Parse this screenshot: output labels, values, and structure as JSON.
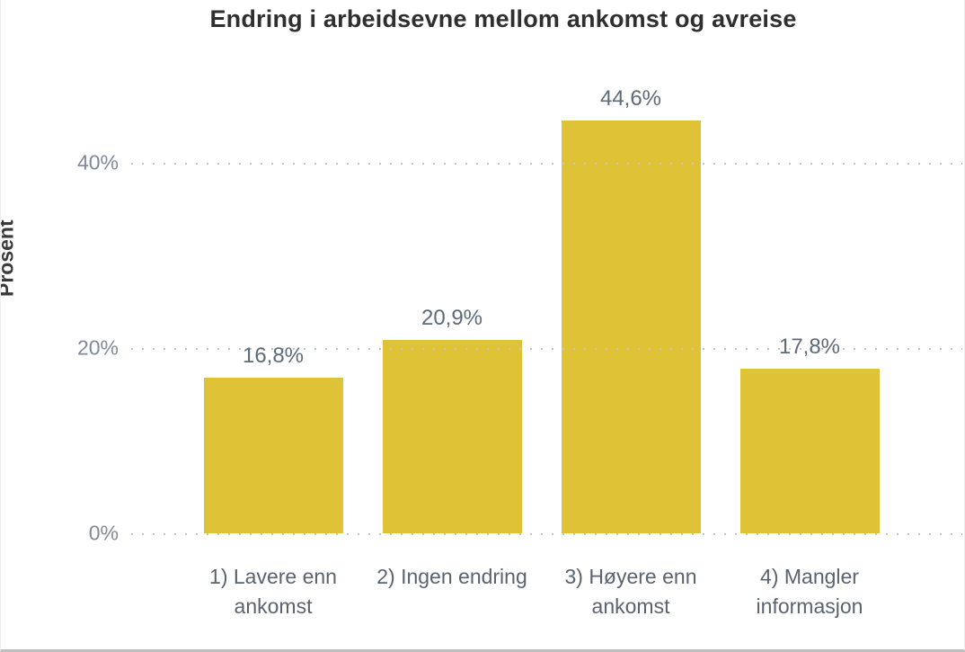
{
  "chart_data": {
    "type": "bar",
    "title": "Endring i arbeidsevne mellom ankomst og avreise",
    "xlabel": "",
    "ylabel": "Prosent",
    "categories": [
      "1) Lavere enn ankomst",
      "2) Ingen endring",
      "3) Høyere enn ankomst",
      "4) Mangler informasjon"
    ],
    "values": [
      16.8,
      20.9,
      44.6,
      17.8
    ],
    "value_labels": [
      "16,8%",
      "20,9%",
      "44,6%",
      "17,8%"
    ],
    "yticks": [
      {
        "value": 0,
        "label": "0%"
      },
      {
        "value": 20,
        "label": "20%"
      },
      {
        "value": 40,
        "label": "40%"
      }
    ],
    "ylim": [
      0,
      51.7
    ],
    "grid": "horizontal-dotted",
    "legend_position": "none",
    "bar_color": "#E0C236"
  },
  "colors": {
    "bar": "#E0C236",
    "title_text": "#2f2f2f",
    "tick_text": "#7e8a97",
    "value_label_text": "#5d6b79",
    "category_text": "#596470",
    "gridline": "#c6c6c6"
  }
}
